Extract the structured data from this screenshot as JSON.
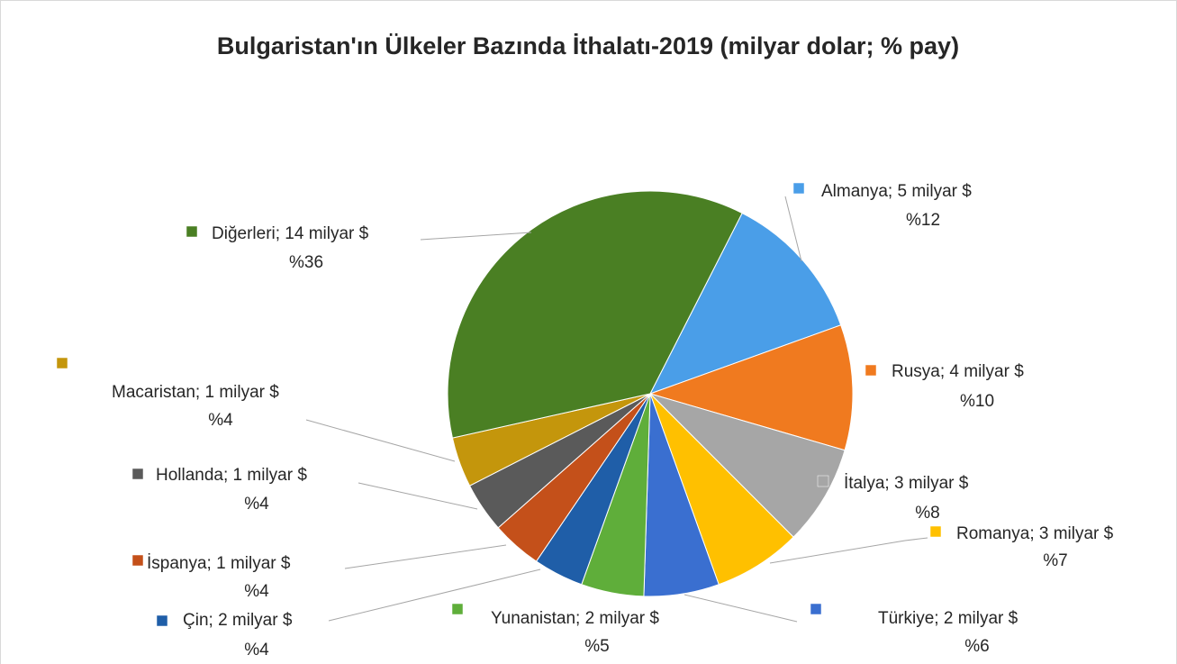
{
  "chart_data": {
    "type": "pie",
    "title": "Bulgaristan'ın Ülkeler Bazında İthalatı-2019 (milyar dolar; % pay)",
    "categories": [
      "Almanya; 5 milyar $",
      "Rusya; 4 milyar $",
      "İtalya; 3 milyar $",
      "Romanya; 3 milyar $",
      "Türkiye; 2 milyar $",
      "Yunanistan; 2 milyar $",
      "Çin; 2 milyar $",
      "İspanya; 1 milyar $",
      "Hollanda; 1 milyar $",
      "Macaristan; 1 milyar $",
      "Diğerleri; 14 milyar $"
    ],
    "values": [
      12,
      10,
      8,
      7,
      6,
      5,
      4,
      4,
      4,
      4,
      36
    ],
    "value_labels": [
      "%12",
      "%10",
      "%8",
      "%7",
      "%6",
      "%5",
      "%4",
      "%4",
      "%4",
      "%4",
      "%36"
    ],
    "colors": [
      "#4a9ee8",
      "#f07a1f",
      "#a6a6a6",
      "#ffc000",
      "#3a6fd0",
      "#5fae3a",
      "#1f5ea8",
      "#c4501a",
      "#5a5a5a",
      "#c4960c",
      "#4a7f23"
    ]
  }
}
